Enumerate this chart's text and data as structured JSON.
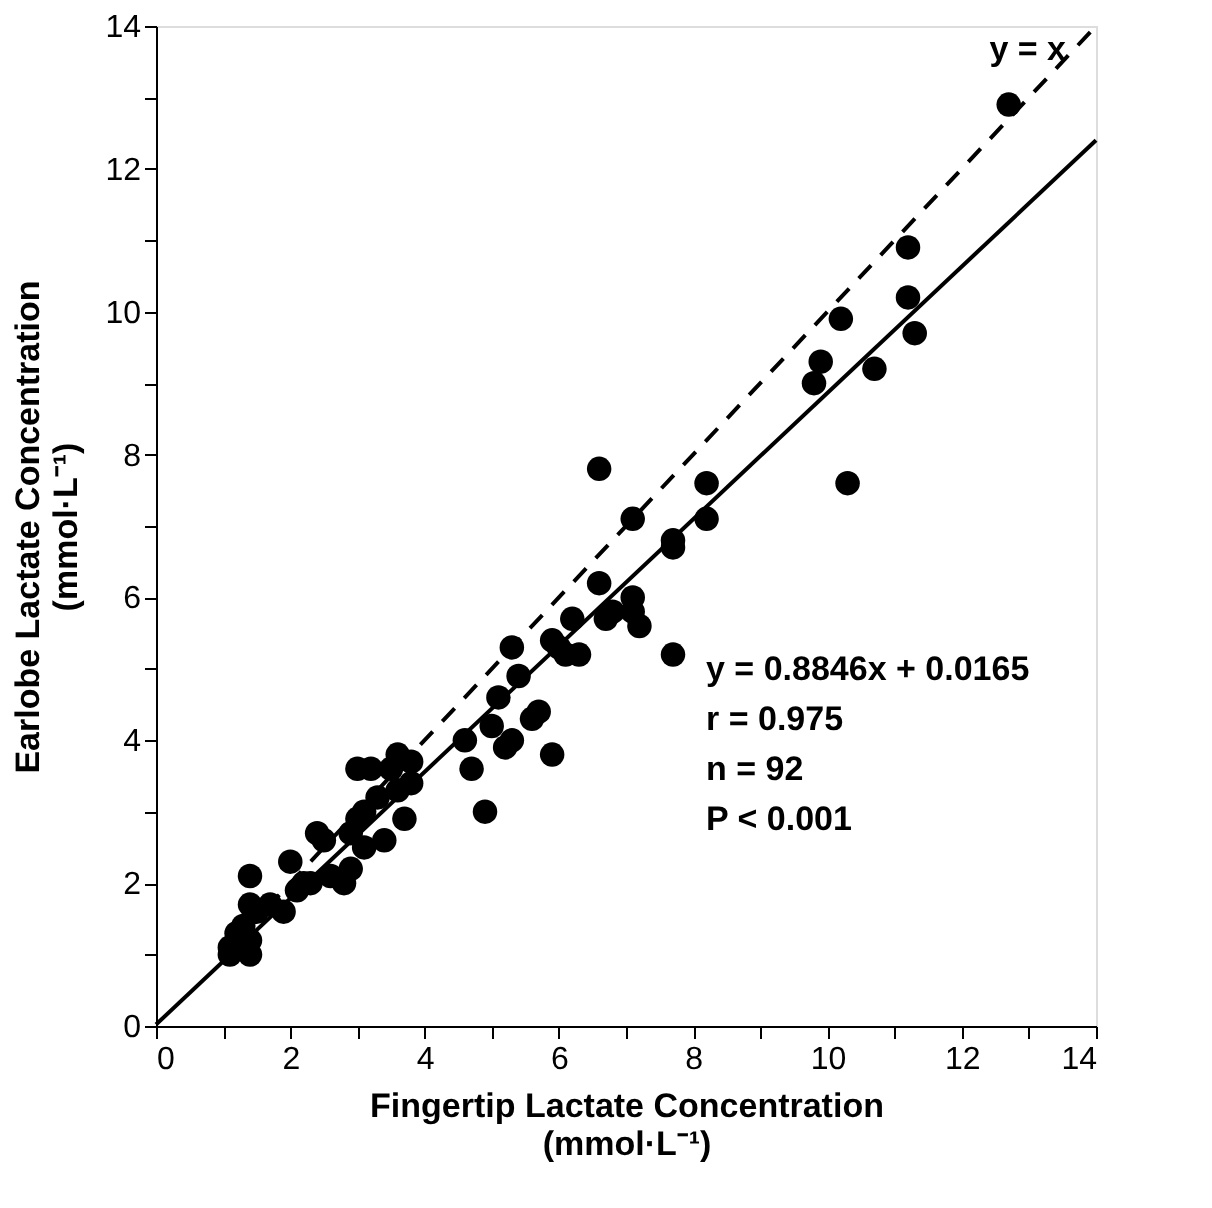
{
  "chart_data": {
    "type": "scatter",
    "xlabel": "Fingertip Lactate Concentration\n(mmol·L⁻¹)",
    "ylabel": "Earlobe Lactate Concentration\n(mmol·L⁻¹)",
    "xlim": [
      0,
      14
    ],
    "ylim": [
      0,
      14
    ],
    "xticks": [
      0,
      {
        "value": 1,
        "label": null
      },
      2,
      {
        "value": 3,
        "label": null
      },
      4,
      {
        "value": 5,
        "label": null
      },
      6,
      {
        "value": 7,
        "label": null
      },
      8,
      {
        "value": 9,
        "label": null
      },
      10,
      {
        "value": 11,
        "label": null
      },
      12,
      {
        "value": 13,
        "label": null
      },
      14
    ],
    "yticks": [
      0,
      {
        "value": 1,
        "label": null
      },
      2,
      {
        "value": 3,
        "label": null
      },
      4,
      {
        "value": 5,
        "label": null
      },
      6,
      {
        "value": 7,
        "label": null
      },
      8,
      {
        "value": 9,
        "label": null
      },
      10,
      {
        "value": 11,
        "label": null
      },
      12,
      {
        "value": 13,
        "label": null
      },
      14
    ],
    "grid": false,
    "marker": "circle",
    "series": [
      {
        "color": "#000000",
        "x": [
          12.7,
          11.2,
          11.2,
          11.3,
          10.2,
          10.7,
          9.8,
          9.9,
          10.3,
          8.2,
          8.2,
          7.7,
          7.7,
          7.1,
          6.6,
          7.7,
          7.1,
          7.2,
          7.1,
          6.8,
          6.6,
          6.7,
          6.2,
          6.1,
          6.3,
          5.9,
          6.0,
          5.3,
          5.6,
          5.7,
          5.9,
          5.3,
          5.1,
          5.0,
          5.4,
          4.6,
          4.7,
          4.9,
          5.2,
          3.8,
          3.6,
          3.5,
          3.2,
          3.0,
          3.3,
          3.6,
          3.8,
          3.7,
          3.0,
          2.9,
          3.1,
          3.4,
          3.1,
          2.4,
          2.5,
          2.3,
          2.6,
          2.8,
          2.9,
          2.2,
          2.1,
          2.0,
          1.4,
          1.7,
          1.4,
          1.9,
          1.2,
          1.1,
          1.4,
          1.3,
          1.5,
          1.1,
          1.4
        ],
        "values": [
          12.9,
          10.9,
          10.2,
          9.7,
          9.9,
          9.2,
          9.0,
          9.3,
          7.6,
          7.6,
          7.1,
          6.8,
          6.7,
          7.1,
          7.8,
          5.2,
          6.0,
          5.6,
          5.8,
          5.8,
          6.2,
          5.7,
          5.7,
          5.2,
          5.2,
          5.4,
          5.3,
          5.3,
          4.3,
          4.4,
          3.8,
          4.0,
          4.6,
          4.2,
          4.9,
          4.0,
          3.6,
          3.0,
          3.9,
          3.7,
          3.8,
          3.6,
          3.6,
          3.6,
          3.2,
          3.3,
          3.4,
          2.9,
          2.9,
          2.7,
          2.5,
          2.6,
          3.0,
          2.7,
          2.6,
          2.0,
          2.1,
          2.0,
          2.2,
          2.0,
          1.9,
          2.3,
          2.1,
          1.7,
          1.7,
          1.6,
          1.3,
          1.0,
          1.0,
          1.4,
          1.6,
          1.1,
          1.2
        ]
      },
      {
        "type": "line",
        "color": "#000000",
        "line_style": "solid",
        "marker": "none",
        "x": [
          0,
          14
        ],
        "values": [
          0.02,
          12.4
        ]
      },
      {
        "type": "line",
        "color": "#000000",
        "line_style": "dashed",
        "marker": "none",
        "x": [
          1,
          14
        ],
        "values": [
          1,
          14
        ]
      }
    ],
    "annotations": [
      "y = x",
      "y = 0.8846x + 0.0165",
      "r = 0.975",
      "n = 92",
      "P < 0.001"
    ]
  }
}
